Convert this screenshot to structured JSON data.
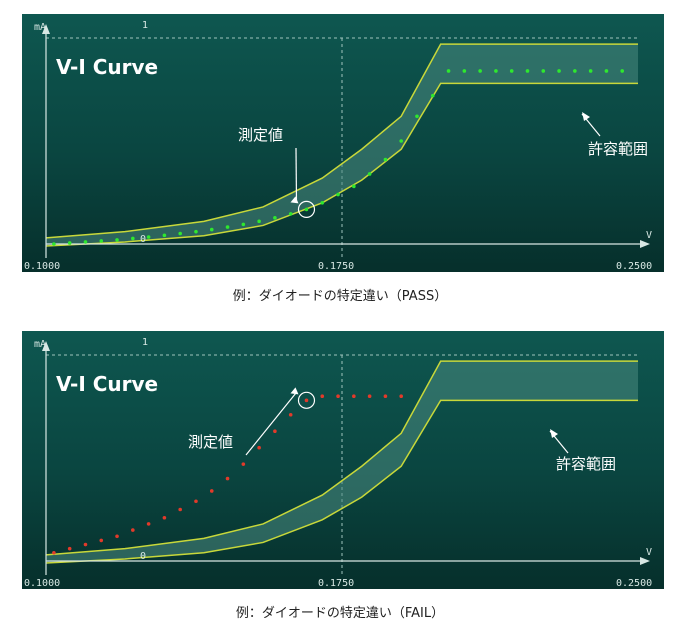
{
  "colors": {
    "panel_top": "#0e5750",
    "panel_bottom": "#062f2b",
    "band_edge": "#c8d83a",
    "band_fill": "#4a8a80",
    "pass_dots": "#2ee82e",
    "fail_dots": "#e23a2a",
    "axis": "#d8e8e4",
    "label_white": "#ffffff"
  },
  "chart_data": [
    {
      "type": "line",
      "title": "V-I Curve",
      "ylabel": "mA",
      "xlabel": "V",
      "y_tick_labels": [
        "1",
        "0"
      ],
      "x_tick_labels": [
        "0.1000",
        "0.1750",
        "0.2500"
      ],
      "xlim": [
        0.1,
        0.25
      ],
      "ylim": [
        0,
        1
      ],
      "annotations": [
        "測定値",
        "許容範囲"
      ],
      "series": [
        {
          "role": "tolerance-upper",
          "x": [
            0.1,
            0.12,
            0.14,
            0.155,
            0.17,
            0.18,
            0.19,
            0.2,
            0.25
          ],
          "y": [
            0.03,
            0.06,
            0.11,
            0.18,
            0.32,
            0.46,
            0.62,
            0.97,
            0.97
          ]
        },
        {
          "role": "tolerance-lower",
          "x": [
            0.1,
            0.12,
            0.14,
            0.155,
            0.17,
            0.18,
            0.19,
            0.2,
            0.25
          ],
          "y": [
            -0.01,
            0.01,
            0.04,
            0.09,
            0.2,
            0.31,
            0.46,
            0.78,
            0.78
          ]
        },
        {
          "role": "measured-pass",
          "x": [
            0.102,
            0.106,
            0.11,
            0.114,
            0.118,
            0.122,
            0.126,
            0.13,
            0.134,
            0.138,
            0.142,
            0.146,
            0.15,
            0.154,
            0.158,
            0.162,
            0.166,
            0.17,
            0.174,
            0.178,
            0.182,
            0.186,
            0.19,
            0.194,
            0.198,
            0.202,
            0.206,
            0.21,
            0.214,
            0.218,
            0.222,
            0.226,
            0.23,
            0.234,
            0.238,
            0.242,
            0.246
          ],
          "y": [
            0.0,
            0.005,
            0.01,
            0.015,
            0.02,
            0.027,
            0.034,
            0.042,
            0.051,
            0.06,
            0.07,
            0.082,
            0.095,
            0.11,
            0.127,
            0.146,
            0.168,
            0.2,
            0.24,
            0.28,
            0.34,
            0.41,
            0.5,
            0.62,
            0.72,
            0.84,
            0.84,
            0.84,
            0.84,
            0.84,
            0.84,
            0.84,
            0.84,
            0.84,
            0.84,
            0.84,
            0.84
          ]
        },
        {
          "role": "tolerance-upper",
          "x": [
            0.1,
            0.12,
            0.14,
            0.155,
            0.17,
            0.18,
            0.19,
            0.2,
            0.25
          ],
          "y": [
            0.03,
            0.06,
            0.11,
            0.18,
            0.32,
            0.46,
            0.62,
            0.97,
            0.97
          ]
        }
      ]
    },
    {
      "type": "line",
      "title": "V-I Curve",
      "ylabel": "mA",
      "xlabel": "V",
      "y_tick_labels": [
        "1",
        "0"
      ],
      "x_tick_labels": [
        "0.1000",
        "0.1750",
        "0.2500"
      ],
      "xlim": [
        0.1,
        0.25
      ],
      "ylim": [
        0,
        1
      ],
      "annotations": [
        "測定値",
        "許容範囲"
      ],
      "series": [
        {
          "role": "tolerance-upper",
          "x": [
            0.1,
            0.12,
            0.14,
            0.155,
            0.17,
            0.18,
            0.19,
            0.2,
            0.25
          ],
          "y": [
            0.03,
            0.06,
            0.11,
            0.18,
            0.32,
            0.46,
            0.62,
            0.97,
            0.97
          ]
        },
        {
          "role": "tolerance-lower",
          "x": [
            0.1,
            0.12,
            0.14,
            0.155,
            0.17,
            0.18,
            0.19,
            0.2,
            0.25
          ],
          "y": [
            -0.01,
            0.01,
            0.04,
            0.09,
            0.2,
            0.31,
            0.46,
            0.78,
            0.78
          ]
        },
        {
          "role": "measured-fail",
          "x": [
            0.102,
            0.106,
            0.11,
            0.114,
            0.118,
            0.122,
            0.126,
            0.13,
            0.134,
            0.138,
            0.142,
            0.146,
            0.15,
            0.154,
            0.158,
            0.162,
            0.166,
            0.17,
            0.174,
            0.178,
            0.182,
            0.186,
            0.19
          ],
          "y": [
            0.04,
            0.06,
            0.08,
            0.1,
            0.12,
            0.15,
            0.18,
            0.21,
            0.25,
            0.29,
            0.34,
            0.4,
            0.47,
            0.55,
            0.63,
            0.71,
            0.78,
            0.8,
            0.8,
            0.8,
            0.8,
            0.8,
            0.8
          ]
        }
      ]
    }
  ],
  "captions": {
    "pass": "例：ダイオードの特定違い（PASS）",
    "fail": "例：ダイオードの特定違い（FAIL）"
  }
}
